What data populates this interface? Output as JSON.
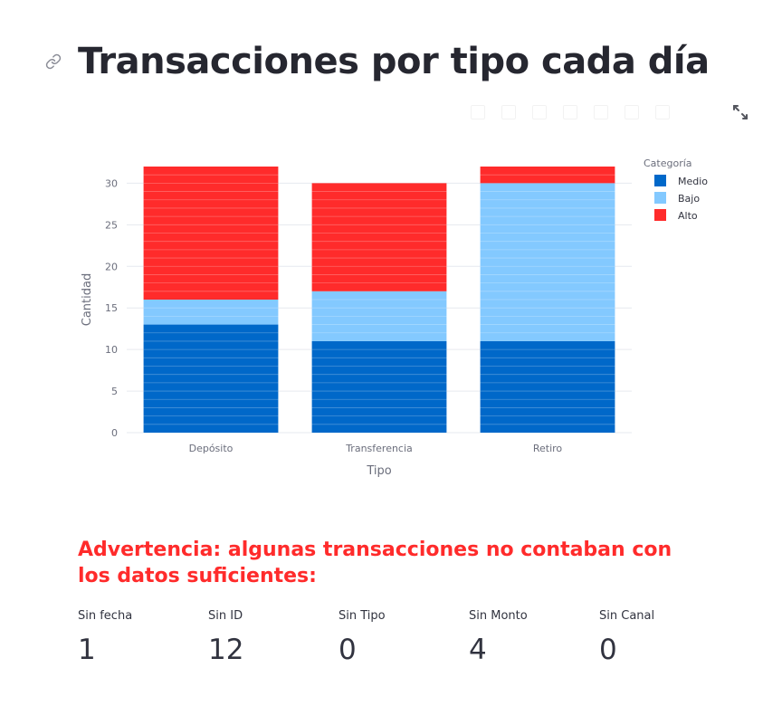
{
  "page": {
    "title": "Transacciones por tipo cada día",
    "warning": "Advertencia: algunas transacciones no contaban con los datos suficientes:"
  },
  "metrics": [
    {
      "label": "Sin fecha",
      "value": "1"
    },
    {
      "label": "Sin ID",
      "value": "12"
    },
    {
      "label": "Sin Tipo",
      "value": "0"
    },
    {
      "label": "Sin Monto",
      "value": "4"
    },
    {
      "label": "Sin Canal",
      "value": "0"
    }
  ],
  "colors": {
    "Medio": "#0068c9",
    "Bajo": "#83c9ff",
    "Alto": "#ff2b2b",
    "warning": "#ff2b2b"
  },
  "icons": [
    "link-icon",
    "fullscreen-expand-icon"
  ],
  "chart_data": {
    "type": "bar",
    "stacked": true,
    "categories": [
      "Depósito",
      "Transferencia",
      "Retiro"
    ],
    "series": [
      {
        "name": "Medio",
        "values": [
          13,
          11,
          11
        ]
      },
      {
        "name": "Bajo",
        "values": [
          3,
          6,
          19
        ]
      },
      {
        "name": "Alto",
        "values": [
          16,
          13,
          2
        ]
      }
    ],
    "xlabel": "Tipo",
    "ylabel": "Cantidad",
    "ylim": [
      0,
      32
    ],
    "yticks": [
      0,
      5,
      10,
      15,
      20,
      25,
      30
    ],
    "legend_title": "Categoría",
    "legend_position": "top-right",
    "grid": true
  }
}
